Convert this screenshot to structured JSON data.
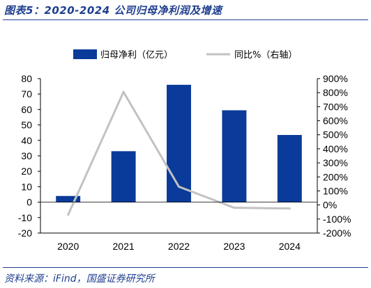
{
  "figure": {
    "title": "图表5：2020-2024 公司归母净利润及增速",
    "source": "资料来源：iFind，国盛证券研究所"
  },
  "colors": {
    "bar": "#0a3b9a",
    "line": "#c2c2c2",
    "accent": "#1f3f8f"
  },
  "chart_data": {
    "type": "bar",
    "categories": [
      "2020",
      "2021",
      "2022",
      "2023",
      "2024"
    ],
    "series": [
      {
        "name": "归母净利（亿元）",
        "type": "bar",
        "axis": "left",
        "values": [
          4,
          33,
          76,
          59.5,
          43.5
        ]
      },
      {
        "name": "同比%（右轴）",
        "type": "line",
        "axis": "right",
        "values": [
          -70,
          805,
          130,
          -20,
          -25
        ]
      }
    ],
    "ylim": [
      -20,
      80
    ],
    "yticks": [
      -20,
      -10,
      0,
      10,
      20,
      30,
      40,
      50,
      60,
      70,
      80
    ],
    "y2lim": [
      -200,
      900
    ],
    "y2ticks": [
      "-200%",
      "-100%",
      "0%",
      "100%",
      "200%",
      "300%",
      "400%",
      "500%",
      "600%",
      "700%",
      "800%",
      "900%"
    ],
    "grid": false,
    "legend_position": "top"
  }
}
